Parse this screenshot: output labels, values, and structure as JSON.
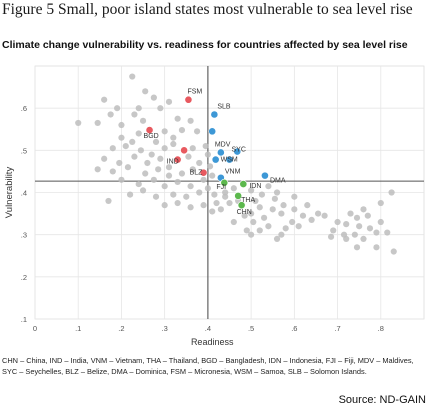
{
  "header": {
    "title": "Figure 5 Small, poor island states most vulnerable to sea level rise",
    "subtitle": "Climate change vulnerability vs. readiness for countries affected by sea level rise"
  },
  "footnote": "CHN – China, IND – India, VNM – Vietnam, THA – Thailand, BGD – Bangladesh, IDN – Indonesia, FJI – Fiji, MDV – Maldives, SYC – Seychelles, BLZ – Belize, DMA – Dominica, FSM – Micronesia, WSM – Samoa, SLB – Solomon Islands.",
  "source": "Source: ND-GAIN",
  "colors": {
    "grey": "#bdbdbd",
    "red": "#e8595f",
    "blue": "#3d98d6",
    "green": "#5cb84d",
    "axis": "#555555",
    "grid": "#e6e6e6"
  },
  "chart_data": {
    "type": "scatter",
    "xlabel": "Readiness",
    "ylabel": "Vulnerability",
    "xlim": [
      0,
      0.9
    ],
    "ylim": [
      0.1,
      0.7
    ],
    "x_ticks": [
      "0",
      ".1",
      ".2",
      ".3",
      ".4",
      ".5",
      ".6",
      ".7",
      ".8"
    ],
    "y_ticks": [
      ".1",
      ".2",
      ".3",
      ".4",
      ".5",
      ".6"
    ],
    "grid": true,
    "reference_lines": {
      "x": 0.4,
      "y": 0.427
    },
    "highlighted": [
      {
        "label": "FSM",
        "x": 0.355,
        "y": 0.62,
        "group": "red"
      },
      {
        "label": "SLB",
        "x": 0.415,
        "y": 0.585,
        "group": "blue"
      },
      {
        "label": "",
        "x": 0.41,
        "y": 0.545,
        "group": "blue"
      },
      {
        "label": "BGD",
        "x": 0.265,
        "y": 0.548,
        "group": "red"
      },
      {
        "label": "MDV",
        "x": 0.43,
        "y": 0.495,
        "group": "blue"
      },
      {
        "label": "",
        "x": 0.468,
        "y": 0.497,
        "group": "blue"
      },
      {
        "label": "",
        "x": 0.345,
        "y": 0.5,
        "group": "red"
      },
      {
        "label": "IND",
        "x": 0.33,
        "y": 0.478,
        "group": "red"
      },
      {
        "label": "WSM",
        "x": 0.418,
        "y": 0.478,
        "group": "blue"
      },
      {
        "label": "SYC",
        "x": 0.45,
        "y": 0.478,
        "group": "blue"
      },
      {
        "label": "BLZ",
        "x": 0.39,
        "y": 0.447,
        "group": "red"
      },
      {
        "label": "VNM",
        "x": 0.43,
        "y": 0.435,
        "group": "blue"
      },
      {
        "label": "DMA",
        "x": 0.532,
        "y": 0.44,
        "group": "blue"
      },
      {
        "label": "FJI",
        "x": 0.438,
        "y": 0.423,
        "group": "green"
      },
      {
        "label": "IDN",
        "x": 0.482,
        "y": 0.42,
        "group": "green"
      },
      {
        "label": "THA",
        "x": 0.47,
        "y": 0.392,
        "group": "green"
      },
      {
        "label": "CHN",
        "x": 0.478,
        "y": 0.37,
        "group": "green"
      }
    ],
    "points": [
      [
        0.225,
        0.675
      ],
      [
        0.255,
        0.64
      ],
      [
        0.24,
        0.6
      ],
      [
        0.275,
        0.625
      ],
      [
        0.31,
        0.615
      ],
      [
        0.16,
        0.62
      ],
      [
        0.19,
        0.6
      ],
      [
        0.1,
        0.565
      ],
      [
        0.145,
        0.565
      ],
      [
        0.175,
        0.585
      ],
      [
        0.2,
        0.56
      ],
      [
        0.23,
        0.585
      ],
      [
        0.25,
        0.57
      ],
      [
        0.29,
        0.6
      ],
      [
        0.33,
        0.575
      ],
      [
        0.36,
        0.57
      ],
      [
        0.32,
        0.53
      ],
      [
        0.3,
        0.545
      ],
      [
        0.34,
        0.548
      ],
      [
        0.375,
        0.545
      ],
      [
        0.2,
        0.53
      ],
      [
        0.225,
        0.52
      ],
      [
        0.24,
        0.54
      ],
      [
        0.28,
        0.52
      ],
      [
        0.18,
        0.505
      ],
      [
        0.21,
        0.51
      ],
      [
        0.245,
        0.5
      ],
      [
        0.27,
        0.49
      ],
      [
        0.3,
        0.505
      ],
      [
        0.32,
        0.515
      ],
      [
        0.365,
        0.505
      ],
      [
        0.395,
        0.51
      ],
      [
        0.4,
        0.49
      ],
      [
        0.16,
        0.48
      ],
      [
        0.195,
        0.47
      ],
      [
        0.23,
        0.485
      ],
      [
        0.26,
        0.47
      ],
      [
        0.29,
        0.48
      ],
      [
        0.31,
        0.46
      ],
      [
        0.355,
        0.485
      ],
      [
        0.38,
        0.47
      ],
      [
        0.405,
        0.462
      ],
      [
        0.145,
        0.455
      ],
      [
        0.18,
        0.45
      ],
      [
        0.215,
        0.46
      ],
      [
        0.255,
        0.445
      ],
      [
        0.285,
        0.455
      ],
      [
        0.31,
        0.44
      ],
      [
        0.34,
        0.445
      ],
      [
        0.365,
        0.455
      ],
      [
        0.39,
        0.43
      ],
      [
        0.41,
        0.44
      ],
      [
        0.2,
        0.43
      ],
      [
        0.24,
        0.42
      ],
      [
        0.275,
        0.43
      ],
      [
        0.3,
        0.415
      ],
      [
        0.33,
        0.425
      ],
      [
        0.36,
        0.415
      ],
      [
        0.22,
        0.395
      ],
      [
        0.25,
        0.405
      ],
      [
        0.28,
        0.39
      ],
      [
        0.32,
        0.395
      ],
      [
        0.35,
        0.39
      ],
      [
        0.38,
        0.4
      ],
      [
        0.4,
        0.41
      ],
      [
        0.415,
        0.395
      ],
      [
        0.17,
        0.38
      ],
      [
        0.3,
        0.37
      ],
      [
        0.33,
        0.375
      ],
      [
        0.36,
        0.365
      ],
      [
        0.39,
        0.37
      ],
      [
        0.42,
        0.375
      ],
      [
        0.44,
        0.4
      ],
      [
        0.46,
        0.41
      ],
      [
        0.45,
        0.375
      ],
      [
        0.5,
        0.405
      ],
      [
        0.51,
        0.38
      ],
      [
        0.525,
        0.395
      ],
      [
        0.54,
        0.415
      ],
      [
        0.555,
        0.385
      ],
      [
        0.56,
        0.4
      ],
      [
        0.52,
        0.365
      ],
      [
        0.5,
        0.35
      ],
      [
        0.485,
        0.345
      ],
      [
        0.505,
        0.33
      ],
      [
        0.53,
        0.34
      ],
      [
        0.55,
        0.36
      ],
      [
        0.57,
        0.35
      ],
      [
        0.575,
        0.37
      ],
      [
        0.6,
        0.39
      ],
      [
        0.6,
        0.36
      ],
      [
        0.62,
        0.345
      ],
      [
        0.61,
        0.32
      ],
      [
        0.595,
        0.33
      ],
      [
        0.58,
        0.315
      ],
      [
        0.57,
        0.3
      ],
      [
        0.63,
        0.37
      ],
      [
        0.64,
        0.335
      ],
      [
        0.655,
        0.35
      ],
      [
        0.67,
        0.345
      ],
      [
        0.69,
        0.31
      ],
      [
        0.7,
        0.33
      ],
      [
        0.72,
        0.325
      ],
      [
        0.685,
        0.295
      ],
      [
        0.715,
        0.3
      ],
      [
        0.73,
        0.35
      ],
      [
        0.745,
        0.34
      ],
      [
        0.76,
        0.36
      ],
      [
        0.75,
        0.32
      ],
      [
        0.775,
        0.315
      ],
      [
        0.77,
        0.345
      ],
      [
        0.79,
        0.305
      ],
      [
        0.8,
        0.33
      ],
      [
        0.815,
        0.305
      ],
      [
        0.825,
        0.4
      ],
      [
        0.8,
        0.375
      ],
      [
        0.83,
        0.26
      ],
      [
        0.79,
        0.27
      ],
      [
        0.76,
        0.29
      ],
      [
        0.745,
        0.27
      ],
      [
        0.72,
        0.29
      ],
      [
        0.74,
        0.3
      ],
      [
        0.44,
        0.39
      ],
      [
        0.47,
        0.38
      ],
      [
        0.43,
        0.36
      ],
      [
        0.41,
        0.355
      ],
      [
        0.52,
        0.31
      ],
      [
        0.46,
        0.33
      ],
      [
        0.49,
        0.31
      ],
      [
        0.5,
        0.3
      ],
      [
        0.54,
        0.32
      ],
      [
        0.56,
        0.29
      ]
    ]
  }
}
